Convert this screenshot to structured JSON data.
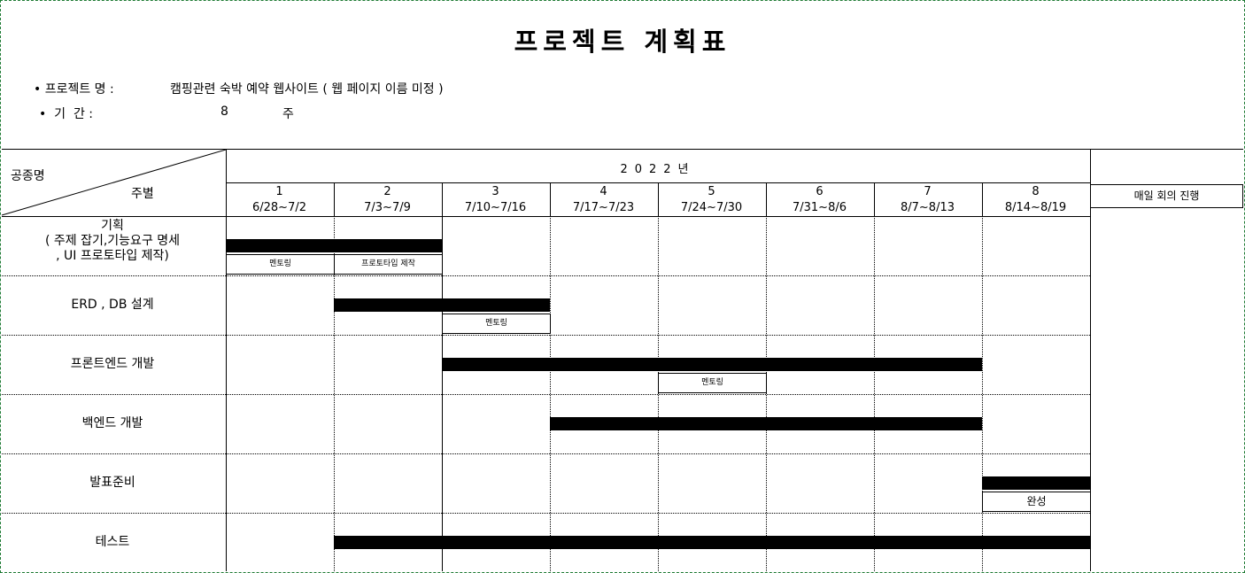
{
  "title": "프로젝트 계획표",
  "info": {
    "project_label": "• 프로젝트 명 :",
    "project_value": "캠핑관련 숙박 예약 웹사이트 ( 웹 페이지 이름 미정 )",
    "period_label": "•  기  간 :",
    "period_value": "8",
    "period_unit": "주"
  },
  "header": {
    "corner_task": "공종명",
    "corner_week": "주별",
    "year": "2022년",
    "side_note": "매일 회의 진행"
  },
  "weeks": [
    {
      "num": "1",
      "range": "6/28~7/2"
    },
    {
      "num": "2",
      "range": "7/3~7/9"
    },
    {
      "num": "3",
      "range": "7/10~7/16"
    },
    {
      "num": "4",
      "range": "7/17~7/23"
    },
    {
      "num": "5",
      "range": "7/24~7/30"
    },
    {
      "num": "6",
      "range": "7/31~8/6"
    },
    {
      "num": "7",
      "range": "8/7~8/13"
    },
    {
      "num": "8",
      "range": "8/14~8/19"
    }
  ],
  "tasks": [
    {
      "name": "기획\n( 주제 잡기,기능요구 명세\n, UI 프로토타입 제작)",
      "start_week": 1,
      "end_week": 2,
      "notes": [
        {
          "text": "멘토링",
          "start_week": 1,
          "end_week": 1
        },
        {
          "text": "프로토타입 제작",
          "start_week": 2,
          "end_week": 2
        }
      ]
    },
    {
      "name": "ERD , DB 설계",
      "start_week": 2,
      "end_week": 3,
      "notes": [
        {
          "text": "멘토링",
          "start_week": 3,
          "end_week": 3
        }
      ]
    },
    {
      "name": "프론트엔드 개발",
      "start_week": 3,
      "end_week": 7,
      "notes": [
        {
          "text": "멘토링",
          "start_week": 5,
          "end_week": 5
        }
      ]
    },
    {
      "name": "백엔드 개발",
      "start_week": 4,
      "end_week": 7,
      "notes": []
    },
    {
      "name": "발표준비",
      "start_week": 8,
      "end_week": 8,
      "notes": [
        {
          "text": "완성",
          "start_week": 8,
          "end_week": 8
        }
      ]
    },
    {
      "name": "테스트",
      "start_week": 2,
      "end_week": 8,
      "notes": []
    }
  ]
}
